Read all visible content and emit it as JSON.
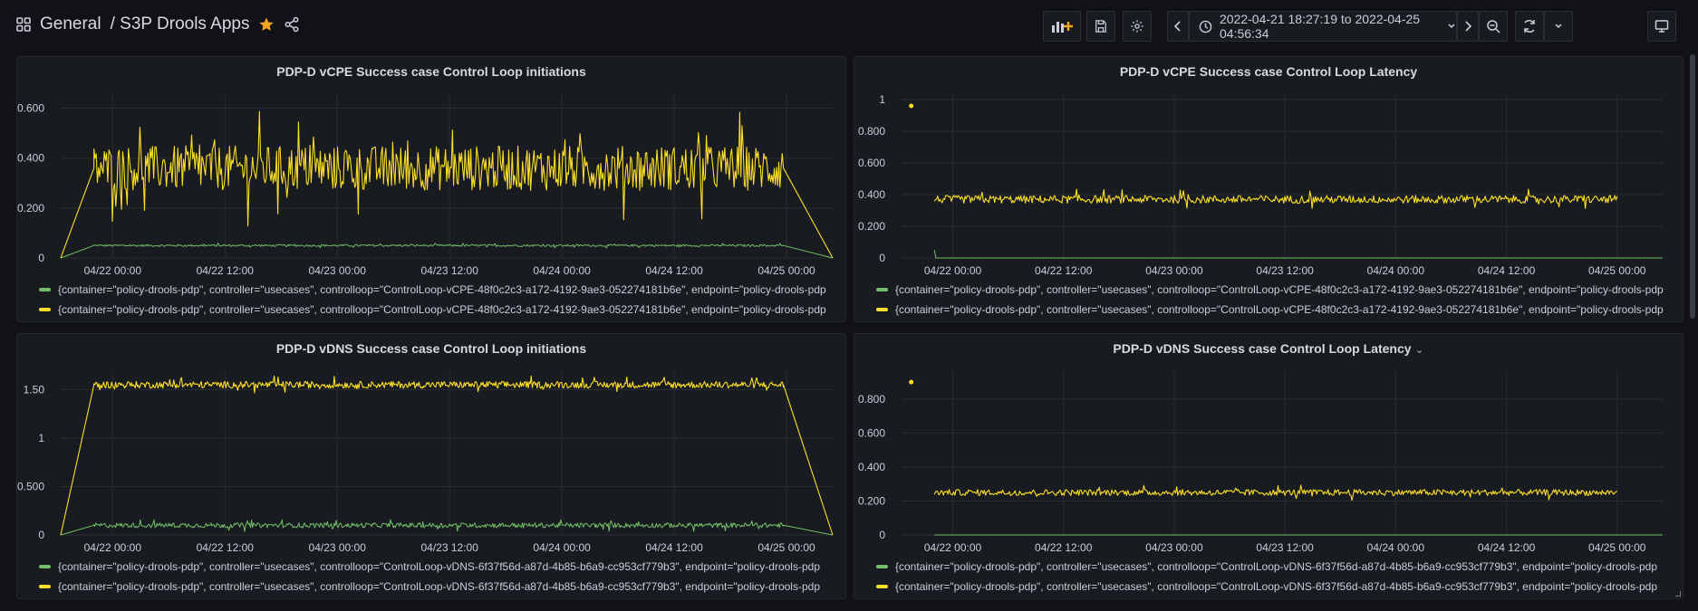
{
  "header": {
    "folder": "General",
    "title": "/ S3P Drools Apps",
    "time_range": "2022-04-21 18:27:19 to 2022-04-25 04:56:34"
  },
  "colors": {
    "green": "#73bf69",
    "yellow": "#fade2a",
    "bg": "#111217",
    "panel": "#181b1f",
    "accent_star": "#f5a623"
  },
  "icons": [
    "apps-grid-icon",
    "star-icon",
    "share-icon",
    "add-panel-icon",
    "save-icon",
    "gear-icon",
    "chevron-left-icon",
    "clock-icon",
    "chevron-down-icon",
    "chevron-right-icon",
    "zoom-out-icon",
    "refresh-icon",
    "tv-icon"
  ],
  "panels": [
    {
      "title": "PDP-D vCPE Success case Control Loop initiations",
      "legend": [
        {
          "color": "#73bf69",
          "label": "{container=\"policy-drools-pdp\", controller=\"usecases\", controlloop=\"ControlLoop-vCPE-48f0c2c3-a172-4192-9ae3-052274181b6e\", endpoint=\"policy-drools-pdp"
        },
        {
          "color": "#fade2a",
          "label": "{container=\"policy-drools-pdp\", controller=\"usecases\", controlloop=\"ControlLoop-vCPE-48f0c2c3-a172-4192-9ae3-052274181b6e\", endpoint=\"policy-drools-pdp"
        }
      ]
    },
    {
      "title": "PDP-D vCPE Success case Control Loop Latency",
      "legend": [
        {
          "color": "#73bf69",
          "label": "{container=\"policy-drools-pdp\", controller=\"usecases\", controlloop=\"ControlLoop-vCPE-48f0c2c3-a172-4192-9ae3-052274181b6e\", endpoint=\"policy-drools-pdp"
        },
        {
          "color": "#fade2a",
          "label": "{container=\"policy-drools-pdp\", controller=\"usecases\", controlloop=\"ControlLoop-vCPE-48f0c2c3-a172-4192-9ae3-052274181b6e\", endpoint=\"policy-drools-pdp"
        }
      ]
    },
    {
      "title": "PDP-D vDNS Success case Control Loop initiations",
      "legend": [
        {
          "color": "#73bf69",
          "label": "{container=\"policy-drools-pdp\", controller=\"usecases\", controlloop=\"ControlLoop-vDNS-6f37f56d-a87d-4b85-b6a9-cc953cf779b3\", endpoint=\"policy-drools-pdp"
        },
        {
          "color": "#fade2a",
          "label": "{container=\"policy-drools-pdp\", controller=\"usecases\", controlloop=\"ControlLoop-vDNS-6f37f56d-a87d-4b85-b6a9-cc953cf779b3\", endpoint=\"policy-drools-pdp"
        }
      ]
    },
    {
      "title": "PDP-D vDNS Success case Control Loop Latency",
      "legend": [
        {
          "color": "#73bf69",
          "label": "{container=\"policy-drools-pdp\", controller=\"usecases\", controlloop=\"ControlLoop-vDNS-6f37f56d-a87d-4b85-b6a9-cc953cf779b3\", endpoint=\"policy-drools-pdp"
        },
        {
          "color": "#fade2a",
          "label": "{container=\"policy-drools-pdp\", controller=\"usecases\", controlloop=\"ControlLoop-vDNS-6f37f56d-a87d-4b85-b6a9-cc953cf779b3\", endpoint=\"policy-drools-pdp"
        }
      ]
    }
  ],
  "chart_data": [
    {
      "type": "line",
      "title": "PDP-D vCPE Success case Control Loop initiations",
      "x_ticks": [
        "04/22 00:00",
        "04/22 12:00",
        "04/23 00:00",
        "04/23 12:00",
        "04/24 00:00",
        "04/24 12:00",
        "04/25 00:00"
      ],
      "y_ticks": [
        "0",
        "0.200",
        "0.400",
        "0.600"
      ],
      "ylim": [
        0,
        0.66
      ],
      "xlim": [
        "2022-04-21 18:27",
        "2022-04-25 04:56"
      ],
      "grid": true,
      "series": [
        {
          "color": "#73bf69",
          "values": [
            0,
            0.05,
            0.05,
            0
          ],
          "x": [
            "2022-04-21 18:27",
            "2022-04-21 22:00",
            "2022-04-24 23:40",
            "2022-04-25 04:56"
          ]
        },
        {
          "color": "#fade2a",
          "values": [
            0,
            0.36,
            0.36,
            0
          ],
          "x": [
            "2022-04-21 18:27",
            "2022-04-21 22:00",
            "2022-04-24 23:40",
            "2022-04-25 04:56"
          ]
        }
      ]
    },
    {
      "type": "line",
      "title": "PDP-D vCPE Success case Control Loop Latency",
      "x_ticks": [
        "04/22 00:00",
        "04/22 12:00",
        "04/23 00:00",
        "04/23 12:00",
        "04/24 00:00",
        "04/24 12:00",
        "04/25 00:00"
      ],
      "y_ticks": [
        "0",
        "0.200",
        "0.400",
        "0.600",
        "0.800",
        "1"
      ],
      "ylim": [
        0,
        1.04
      ],
      "xlim": [
        "2022-04-21 18:27",
        "2022-04-25 04:56"
      ],
      "grid": true,
      "series": [
        {
          "color": "#73bf69",
          "values": [
            0.05,
            0,
            0
          ],
          "x": [
            "2022-04-21 22:00",
            "2022-04-21 22:10",
            "2022-04-25 04:56"
          ]
        },
        {
          "color": "#fade2a",
          "values": [
            0.96,
            0.37,
            0.37
          ],
          "x": [
            "2022-04-21 19:30",
            "2022-04-21 22:00",
            "2022-04-25 00:00"
          ]
        }
      ]
    },
    {
      "type": "line",
      "title": "PDP-D vDNS Success case Control Loop initiations",
      "x_ticks": [
        "04/22 00:00",
        "04/22 12:00",
        "04/23 00:00",
        "04/23 12:00",
        "04/24 00:00",
        "04/24 12:00",
        "04/25 00:00"
      ],
      "y_ticks": [
        "0",
        "0.500",
        "1",
        "1.50"
      ],
      "ylim": [
        0,
        1.7
      ],
      "xlim": [
        "2022-04-21 18:27",
        "2022-04-25 04:56"
      ],
      "grid": true,
      "series": [
        {
          "color": "#73bf69",
          "values": [
            0,
            0.1,
            0.1,
            0
          ],
          "x": [
            "2022-04-21 18:27",
            "2022-04-21 22:00",
            "2022-04-24 23:40",
            "2022-04-25 04:56"
          ]
        },
        {
          "color": "#fade2a",
          "values": [
            0,
            1.55,
            1.55,
            0
          ],
          "x": [
            "2022-04-21 18:27",
            "2022-04-21 22:00",
            "2022-04-24 23:40",
            "2022-04-25 04:56"
          ]
        }
      ]
    },
    {
      "type": "line",
      "title": "PDP-D vDNS Success case Control Loop Latency",
      "x_ticks": [
        "04/22 00:00",
        "04/22 12:00",
        "04/23 00:00",
        "04/23 12:00",
        "04/24 00:00",
        "04/24 12:00",
        "04/25 00:00"
      ],
      "y_ticks": [
        "0",
        "0.200",
        "0.400",
        "0.600",
        "0.800"
      ],
      "ylim": [
        0,
        0.97
      ],
      "xlim": [
        "2022-04-21 18:27",
        "2022-04-25 04:56"
      ],
      "grid": true,
      "series": [
        {
          "color": "#73bf69",
          "values": [
            0,
            0
          ],
          "x": [
            "2022-04-21 22:00",
            "2022-04-25 04:56"
          ]
        },
        {
          "color": "#fade2a",
          "values": [
            0.9,
            0.25,
            0.25
          ],
          "x": [
            "2022-04-21 19:30",
            "2022-04-21 22:00",
            "2022-04-25 00:00"
          ]
        }
      ]
    }
  ]
}
